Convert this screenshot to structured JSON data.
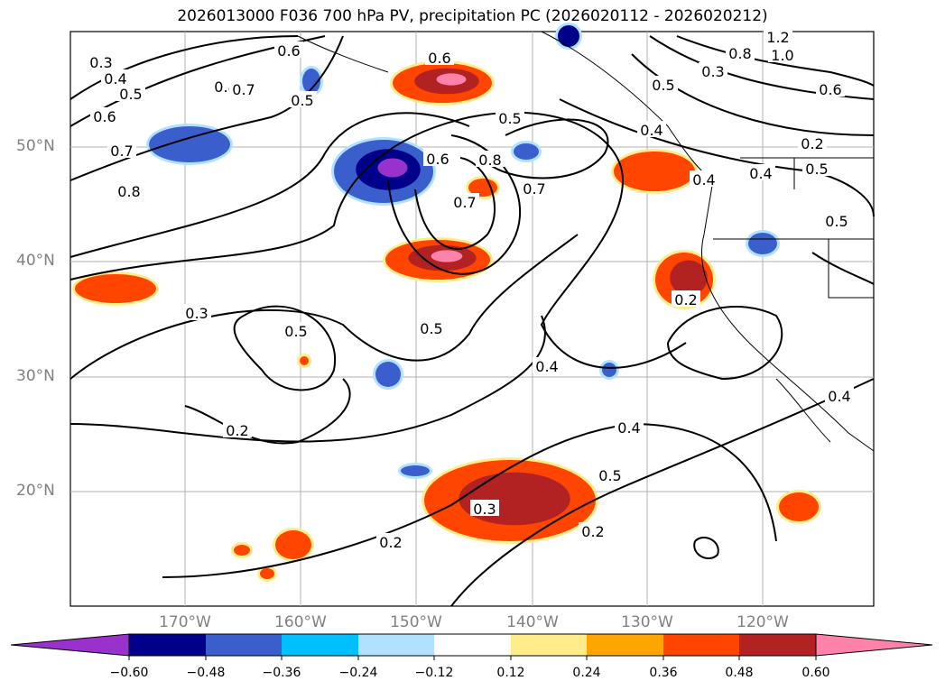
{
  "title": "2026013000 F036 700 hPa PV, precipitation PC (2026020112 - 2026020212)",
  "map": {
    "lat_labels": [
      "50°N",
      "40°N",
      "30°N",
      "20°N"
    ],
    "lon_labels": [
      "170°W",
      "160°W",
      "150°W",
      "140°W",
      "130°W",
      "120°W"
    ],
    "contour_labels": [
      "0.3",
      "0.4",
      "0.5",
      "0.6",
      "0.8",
      "0.7",
      "0.5",
      "0.6",
      "0.7",
      "0.8",
      "0.6",
      "0.5",
      "0.6",
      "0.8",
      "0.7",
      "0.7",
      "0.5",
      "0.4",
      "0.3",
      "0.5",
      "0.8",
      "0.6",
      "1.2",
      "1.0",
      "0.4",
      "0.5",
      "0.5",
      "0.3",
      "0.2",
      "0.5",
      "0.4",
      "0.2",
      "0.4",
      "0.3",
      "0.4",
      "0.5",
      "0.2",
      "0.2",
      "0.2",
      "0.4"
    ]
  },
  "colorbar": {
    "colors": [
      "#9932cc",
      "#00008b",
      "#3a5fcd",
      "#00bfff",
      "#b0e2ff",
      "#ffffff",
      "#ffec8b",
      "#ffa500",
      "#ff4500",
      "#b22222",
      "#ff82ab"
    ],
    "tick_labels": [
      "−0.60",
      "−0.48",
      "−0.36",
      "−0.24",
      "−0.12",
      "0.12",
      "0.24",
      "0.36",
      "0.48",
      "0.60"
    ]
  }
}
